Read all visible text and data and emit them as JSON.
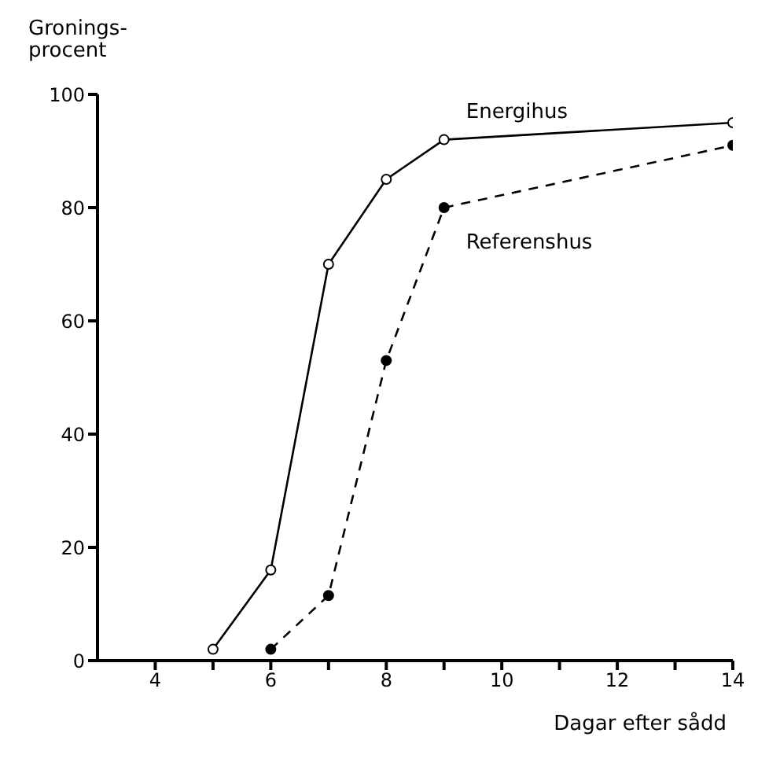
{
  "chart_data": {
    "type": "line",
    "ylabel": "Gronings- procent",
    "xlabel": "Dagar efter sådd",
    "xlim": [
      3,
      14
    ],
    "xticks": [
      4,
      {
        "value": 5,
        "label": null
      },
      6,
      {
        "value": 7,
        "label": null
      },
      8,
      {
        "value": 9,
        "label": null
      },
      10,
      {
        "value": 11,
        "label": null
      },
      12,
      {
        "value": 13,
        "label": null
      },
      14
    ],
    "ylim": [
      0,
      100
    ],
    "yticks": [
      0,
      20,
      40,
      60,
      80,
      100
    ],
    "grid": false,
    "legend": false,
    "marker": "circle",
    "series": [
      {
        "name": "Energihus",
        "color": "#000000",
        "line_style": "solid",
        "x": [
          5,
          6,
          7,
          8,
          9,
          14
        ],
        "values": [
          2,
          16,
          70,
          85,
          92,
          95
        ]
      },
      {
        "name": "Referenshus",
        "color": "#000000",
        "line_style": "dashed",
        "x": [
          6,
          7,
          8,
          9,
          14
        ],
        "values": [
          2,
          11.5,
          53,
          80,
          91
        ]
      }
    ]
  }
}
